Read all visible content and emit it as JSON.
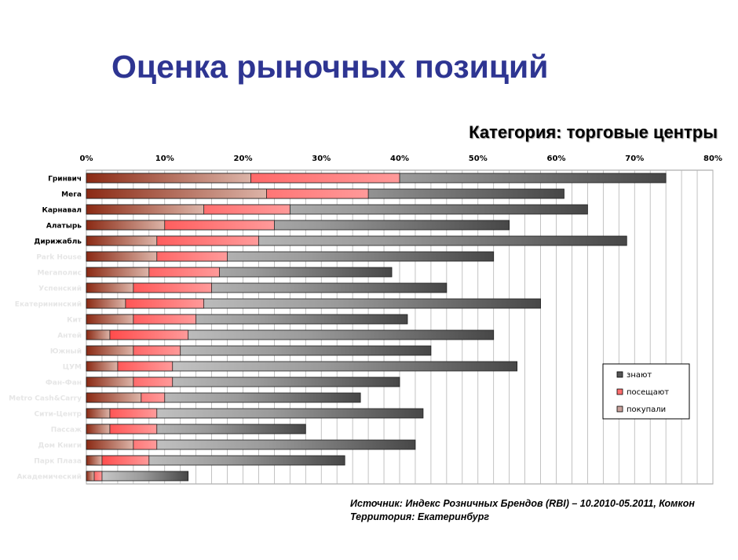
{
  "title": "Оценка рыночных позиций",
  "subtitle": "Категория: торговые центры",
  "source_line1": "Источник: Индекс Розничных Брендов (RBI) – 10.2010-05.2011, Комкон",
  "source_line2": "Территория: Екатеринбург",
  "colors": {
    "know": "#555555",
    "visit": "#ff6e6e",
    "bought": "#8b2a14",
    "title": "#2e3592"
  },
  "chart_data": {
    "type": "bar",
    "orientation": "horizontal",
    "note": "Bars are overlaid: each series value is cumulative from 0%",
    "xlim": [
      0,
      80
    ],
    "xticks": [
      "0%",
      "10%",
      "20%",
      "30%",
      "40%",
      "50%",
      "60%",
      "70%",
      "80%"
    ],
    "categories": [
      "Гринвич",
      "Мега",
      "Карнавал",
      "Алатырь",
      "Дирижабль",
      "Park House",
      "Мегаполис",
      "Успенский",
      "Екатерининский",
      "Кит",
      "Антей",
      "Южный",
      "ЦУМ",
      "Фан-Фан",
      "Metro Cash&Carry",
      "Сити-Центр",
      "Пассаж",
      "Дом Книги",
      "Парк Плаза",
      "Академический"
    ],
    "series": [
      {
        "name": "знают",
        "values": [
          74,
          61,
          64,
          54,
          69,
          52,
          39,
          46,
          58,
          41,
          52,
          44,
          55,
          40,
          35,
          43,
          28,
          42,
          33,
          13
        ]
      },
      {
        "name": "посещают",
        "values": [
          40,
          36,
          26,
          24,
          22,
          18,
          17,
          16,
          15,
          14,
          13,
          12,
          11,
          11,
          10,
          9,
          9,
          9,
          8,
          2
        ]
      },
      {
        "name": "покупали",
        "values": [
          21,
          23,
          15,
          10,
          9,
          9,
          8,
          6,
          5,
          6,
          3,
          6,
          4,
          6,
          7,
          3,
          3,
          6,
          2,
          1
        ]
      }
    ],
    "legend_position": "right"
  }
}
